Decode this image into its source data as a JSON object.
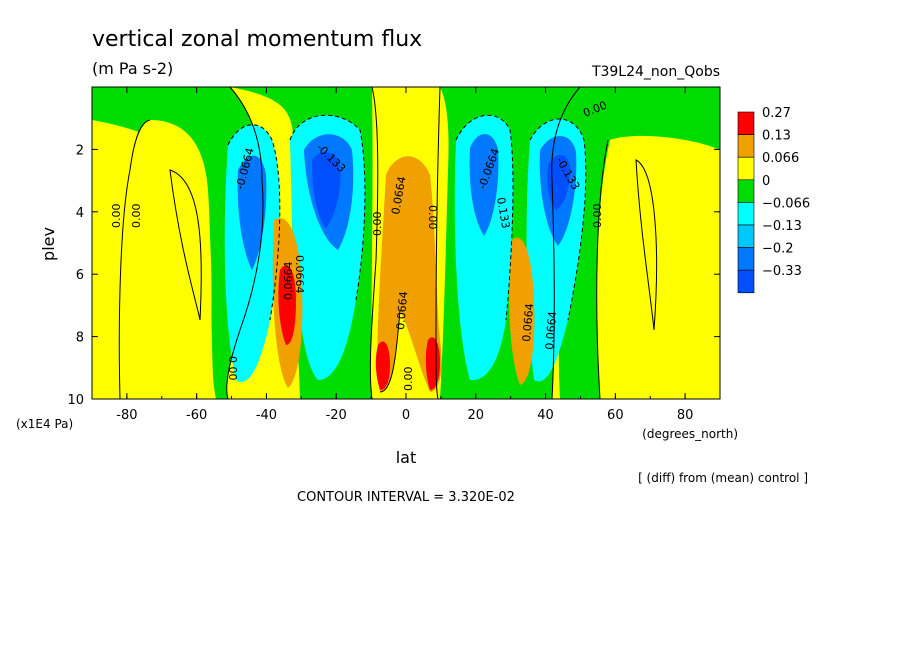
{
  "chart_data": {
    "type": "heatmap",
    "title": "vertical zonal momentum flux",
    "units": "(m Pa s-2)",
    "run_label": "T39L24_non_Qobs",
    "xlabel": "lat",
    "x_units": "(degrees_north)",
    "ylabel": "plev",
    "y_units": "(x1E4 Pa)",
    "x_range": [
      -90,
      90
    ],
    "y_range": [
      10,
      0
    ],
    "x_ticks": [
      "-80",
      "-60",
      "-40",
      "-20",
      "0",
      "20",
      "40",
      "60",
      "80"
    ],
    "y_ticks": [
      "2",
      "4",
      "6",
      "8",
      "10"
    ],
    "contour_interval": "CONTOUR INTERVAL = 3.320E-02",
    "diff_note": "[ (diff) from (mean) control ]",
    "legend": [
      {
        "label": "0.27",
        "color": "#ff0000"
      },
      {
        "label": "0.13",
        "color": "#f0a000"
      },
      {
        "label": "0.066",
        "color": "#ffff00"
      },
      {
        "label": "0",
        "color": "#00dc00"
      },
      {
        "label": "−0.066",
        "color": "#00ffff"
      },
      {
        "label": "−0.13",
        "color": "#00c8ff"
      },
      {
        "label": "−0.2",
        "color": "#0078ff"
      },
      {
        "label": "−0.33",
        "color": "#0050ff"
      }
    ],
    "contour_labels": [
      "0.00",
      "0.00",
      "0.00",
      "0.00",
      "0.00",
      "0.00",
      "0.00",
      "0.00",
      "-0.0664",
      "-0.133",
      "-0.0664",
      "-0.133",
      "0.0664",
      "0.0664",
      "0.0664",
      "0.0664",
      "0.0664",
      "0.133",
      "0.0664"
    ]
  }
}
